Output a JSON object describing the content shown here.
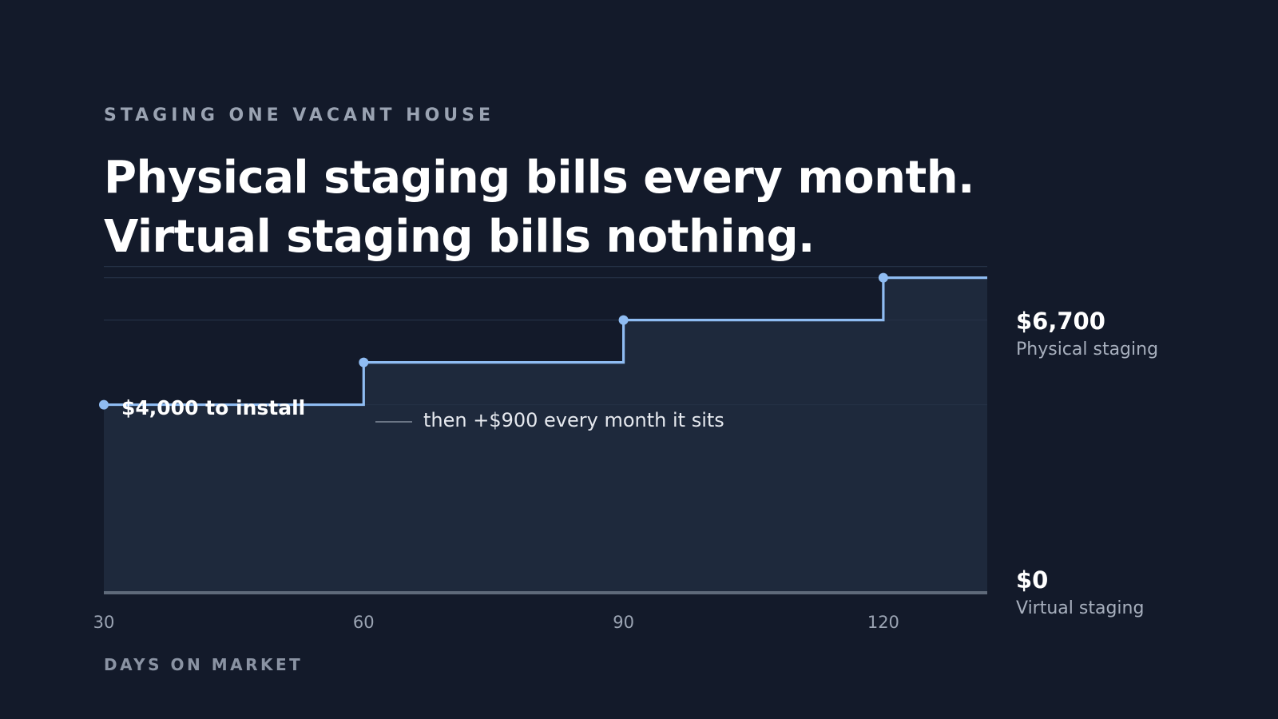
{
  "eyebrow": "STAGING ONE VACANT HOUSE",
  "headline": {
    "line1": "Physical staging bills every month.",
    "line2": "Virtual staging bills nothing."
  },
  "annotations": {
    "install": "$4,000 to install",
    "monthly": "then +$900 every month it sits"
  },
  "end_labels": {
    "physical_value": "$6,700",
    "physical_name": "Physical staging",
    "virtual_value": "$0",
    "virtual_name": "Virtual staging"
  },
  "colors": {
    "background": "#131a2a",
    "physical_line": "#8fbcf2",
    "physical_area": "#1e293c",
    "virtual_line": "#5f6a7a",
    "grid": "#243045"
  },
  "chart_data": {
    "type": "line",
    "step": true,
    "title": "",
    "xlabel": "DAYS ON MARKET",
    "ylabel": "",
    "x_ticks": [
      30,
      60,
      90,
      120
    ],
    "xlim": [
      30,
      132
    ],
    "ylim": [
      0,
      7000
    ],
    "grid": true,
    "series": [
      {
        "name": "Physical staging",
        "x": [
          30,
          60,
          90,
          120,
          132
        ],
        "y": [
          4000,
          4900,
          5800,
          6700,
          6700
        ],
        "markers": [
          30,
          60,
          90,
          120
        ]
      },
      {
        "name": "Virtual staging",
        "x": [
          30,
          132
        ],
        "y": [
          0,
          0
        ]
      }
    ]
  }
}
